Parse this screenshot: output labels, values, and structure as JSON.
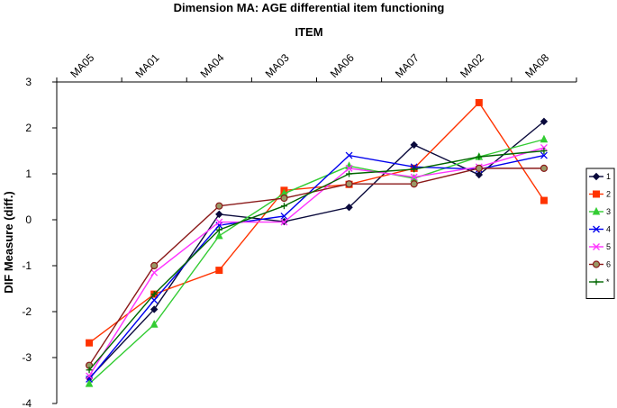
{
  "chart_data": {
    "type": "line",
    "title": "Dimension MA: AGE differential item functioning",
    "xlabel": "ITEM",
    "ylabel": "DIF Measure (diff.)",
    "categories": [
      "MA05",
      "MA01",
      "MA04",
      "MA03",
      "MA06",
      "MA07",
      "MA02",
      "MA08"
    ],
    "ylim": [
      -4,
      3
    ],
    "yticks": [
      -4,
      -3,
      -2,
      -1,
      0,
      1,
      2,
      3
    ],
    "x_axis_position": "top",
    "grid": false,
    "legend_position": "right",
    "series": [
      {
        "name": "1",
        "color": "#0a0a3c",
        "marker": "diamond",
        "values": [
          -3.45,
          -1.95,
          0.12,
          -0.04,
          0.27,
          1.63,
          0.98,
          2.14
        ]
      },
      {
        "name": "2",
        "color": "#ff3300",
        "marker": "square",
        "values": [
          -2.68,
          -1.62,
          -1.1,
          0.64,
          0.77,
          1.12,
          2.55,
          0.42
        ]
      },
      {
        "name": "3",
        "color": "#33cc33",
        "marker": "triangle",
        "values": [
          -3.57,
          -2.28,
          -0.35,
          0.57,
          1.17,
          0.9,
          1.37,
          1.75
        ]
      },
      {
        "name": "4",
        "color": "#0000ee",
        "marker": "x",
        "values": [
          -3.47,
          -1.75,
          -0.12,
          0.08,
          1.4,
          1.15,
          1.1,
          1.4
        ]
      },
      {
        "name": "5",
        "color": "#ff33ff",
        "marker": "x",
        "values": [
          -3.4,
          -1.15,
          -0.05,
          -0.05,
          1.12,
          0.93,
          1.15,
          1.57
        ]
      },
      {
        "name": "6",
        "color": "#8b1a1a",
        "marker": "circle",
        "values": [
          -3.17,
          -1.0,
          0.3,
          0.47,
          0.78,
          0.78,
          1.12,
          1.12
        ]
      },
      {
        "name": "*",
        "color": "#006600",
        "marker": "plus",
        "values": [
          -3.27,
          -1.62,
          -0.22,
          0.3,
          1.0,
          1.1,
          1.37,
          1.5
        ]
      }
    ]
  }
}
